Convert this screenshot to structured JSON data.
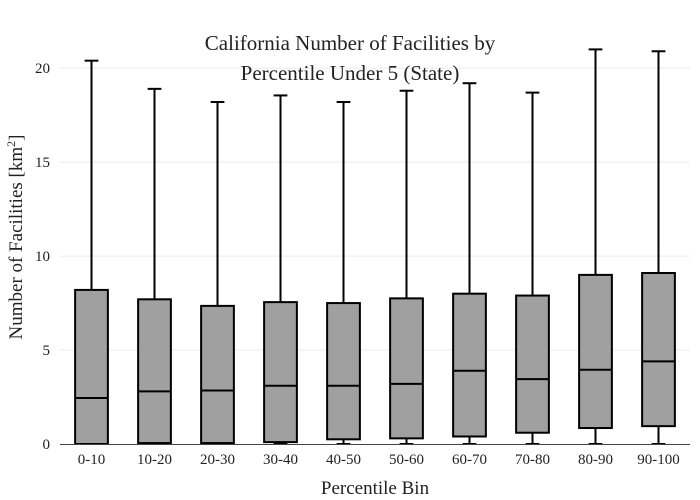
{
  "chart_data": {
    "type": "box",
    "title_lines": [
      "California Number of Facilities by",
      "Percentile Under 5 (State)"
    ],
    "xlabel": "Percentile Bin",
    "ylabel_main": "Number of Facilities  [km",
    "ylabel_sup": "2",
    "ylabel_close": "]",
    "ylim": [
      0,
      21.5
    ],
    "yticks": [
      0,
      5,
      10,
      15,
      20
    ],
    "box_color": "#a0a0a0",
    "grid": true,
    "categories": [
      "0-10",
      "10-20",
      "20-30",
      "30-40",
      "40-50",
      "50-60",
      "60-70",
      "70-80",
      "80-90",
      "90-100"
    ],
    "boxes": [
      {
        "category": "0-10",
        "whisker_low": 0,
        "q1": 0.0,
        "median": 2.45,
        "q3": 8.2,
        "whisker_high": 20.4
      },
      {
        "category": "10-20",
        "whisker_low": 0,
        "q1": 0.05,
        "median": 2.8,
        "q3": 7.7,
        "whisker_high": 18.9
      },
      {
        "category": "20-30",
        "whisker_low": 0,
        "q1": 0.05,
        "median": 2.85,
        "q3": 7.35,
        "whisker_high": 18.2
      },
      {
        "category": "30-40",
        "whisker_low": 0,
        "q1": 0.1,
        "median": 3.1,
        "q3": 7.55,
        "whisker_high": 18.55
      },
      {
        "category": "40-50",
        "whisker_low": 0,
        "q1": 0.25,
        "median": 3.1,
        "q3": 7.5,
        "whisker_high": 18.2
      },
      {
        "category": "50-60",
        "whisker_low": 0,
        "q1": 0.3,
        "median": 3.2,
        "q3": 7.75,
        "whisker_high": 18.8
      },
      {
        "category": "60-70",
        "whisker_low": 0,
        "q1": 0.4,
        "median": 3.9,
        "q3": 8.0,
        "whisker_high": 19.2
      },
      {
        "category": "70-80",
        "whisker_low": 0,
        "q1": 0.6,
        "median": 3.45,
        "q3": 7.9,
        "whisker_high": 18.7
      },
      {
        "category": "80-90",
        "whisker_low": 0,
        "q1": 0.85,
        "median": 3.95,
        "q3": 9.0,
        "whisker_high": 21.0
      },
      {
        "category": "90-100",
        "whisker_low": 0,
        "q1": 0.95,
        "median": 4.4,
        "q3": 9.1,
        "whisker_high": 20.9
      }
    ]
  }
}
